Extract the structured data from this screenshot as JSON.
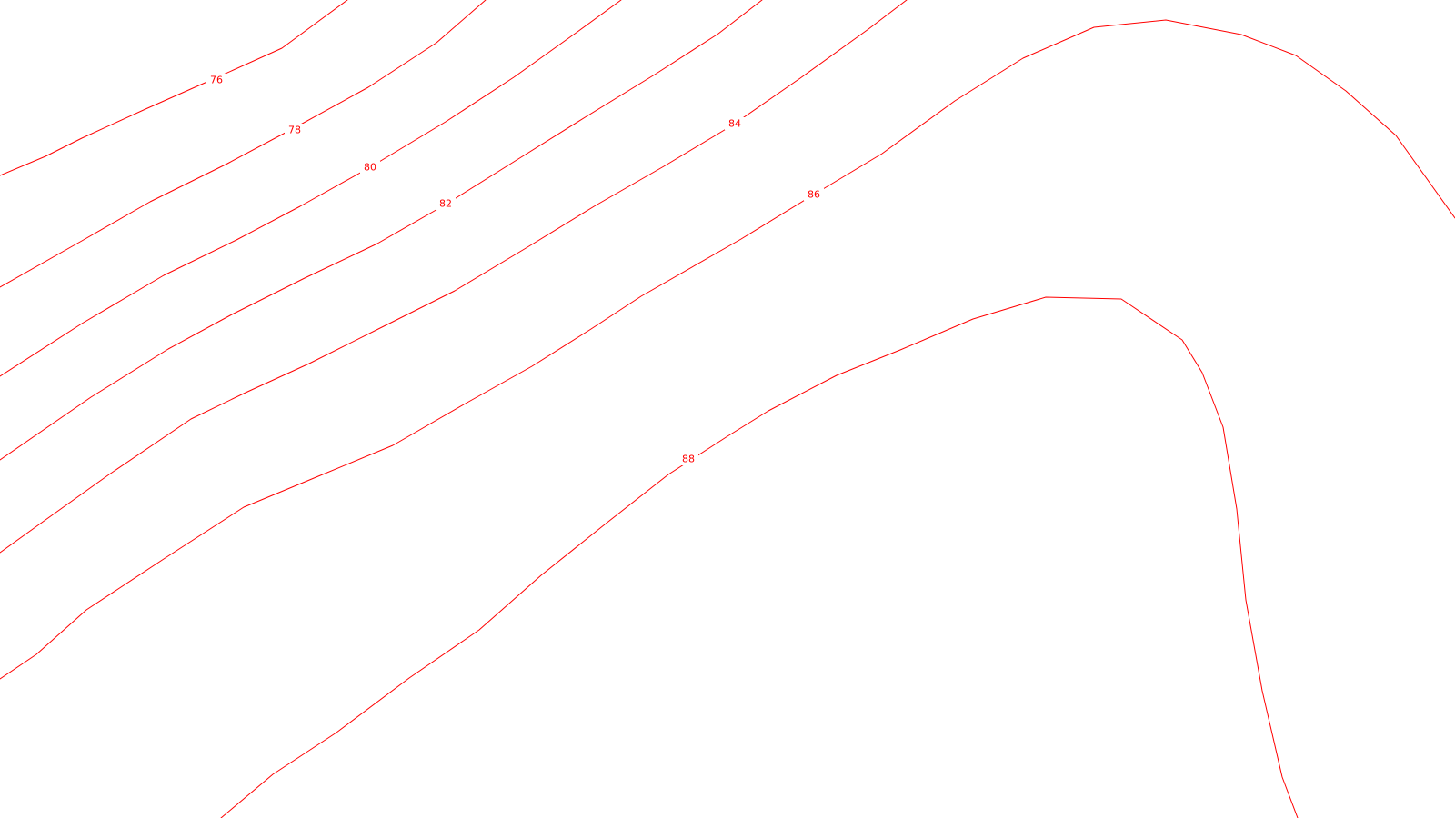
{
  "map": {
    "layer": "contours",
    "contour_color": "#ff0000",
    "background_color": "#ffffff",
    "contour_interval": 2,
    "contours": [
      {
        "label": "76"
      },
      {
        "label": "78"
      },
      {
        "label": "80"
      },
      {
        "label": "82"
      },
      {
        "label": "84"
      },
      {
        "label": "86"
      },
      {
        "label": "88"
      }
    ]
  }
}
